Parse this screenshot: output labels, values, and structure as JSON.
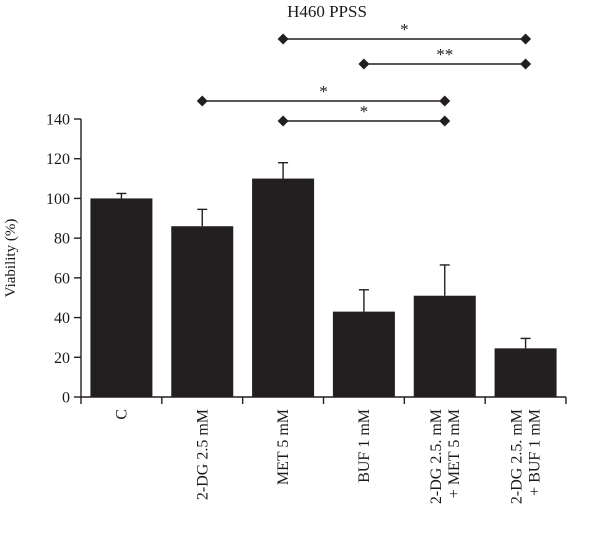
{
  "chart_data": {
    "type": "bar",
    "title": "H460 PPSS",
    "ylabel": "Viability (%)",
    "xlabel": "",
    "ylim": [
      0,
      140
    ],
    "yticks": [
      0,
      20,
      40,
      60,
      80,
      100,
      120,
      140
    ],
    "categories": [
      [
        "C"
      ],
      [
        "2-DG 2.5 mM"
      ],
      [
        "MET 5 mM"
      ],
      [
        "BUF 1 mM"
      ],
      [
        "2-DG 2.5. mM",
        "+ MET 5 mM"
      ],
      [
        "2-DG 2.5. mM",
        "+ BUF 1 mM"
      ]
    ],
    "values": [
      100,
      86,
      110,
      43,
      51,
      24.5
    ],
    "errors": [
      2.5,
      8.5,
      8,
      11,
      15.5,
      5
    ],
    "bar_color": "#231f20",
    "grid": false,
    "legend": "none",
    "significance": [
      {
        "from": 2,
        "to": 5,
        "label": "*"
      },
      {
        "from": 3,
        "to": 5,
        "label": "**"
      },
      {
        "from": 1,
        "to": 4,
        "label": "*"
      },
      {
        "from": 2,
        "to": 4,
        "label": "*"
      }
    ]
  }
}
